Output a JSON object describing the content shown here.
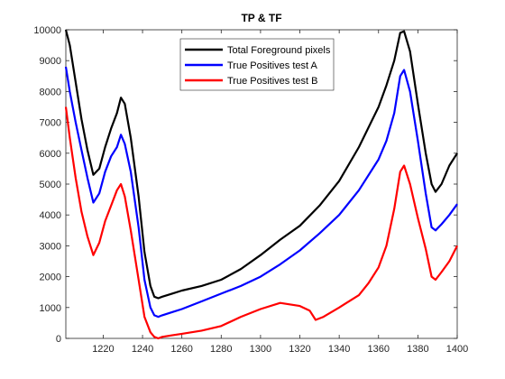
{
  "chart_data": {
    "type": "line",
    "title": "TP & TF",
    "xlabel": "",
    "ylabel": "",
    "xlim": [
      1201,
      1400
    ],
    "ylim": [
      0,
      10000
    ],
    "xticks": [
      1220,
      1240,
      1260,
      1280,
      1300,
      1320,
      1340,
      1360,
      1380,
      1400
    ],
    "yticks": [
      0,
      1000,
      2000,
      3000,
      4000,
      5000,
      6000,
      7000,
      8000,
      9000,
      10000
    ],
    "grid": false,
    "legend_position": "top-center",
    "series": [
      {
        "name": "Total Foreground pixels",
        "color": "#000000",
        "x": [
          1201,
          1203,
          1206,
          1209,
          1212,
          1215,
          1218,
          1221,
          1224,
          1227,
          1229,
          1231,
          1234,
          1238,
          1241,
          1244,
          1246,
          1248,
          1250,
          1255,
          1260,
          1270,
          1280,
          1290,
          1300,
          1310,
          1320,
          1330,
          1340,
          1350,
          1360,
          1364,
          1368,
          1371,
          1373,
          1376,
          1380,
          1384,
          1387,
          1389,
          1392,
          1396,
          1400
        ],
        "y": [
          10100,
          9500,
          8300,
          7100,
          6100,
          5300,
          5500,
          6200,
          6800,
          7300,
          7800,
          7600,
          6500,
          4600,
          2800,
          1700,
          1350,
          1300,
          1350,
          1450,
          1550,
          1700,
          1900,
          2250,
          2700,
          3200,
          3650,
          4300,
          5100,
          6200,
          7500,
          8200,
          9000,
          9900,
          9950,
          9300,
          7600,
          6000,
          5000,
          4750,
          5000,
          5600,
          6000
        ]
      },
      {
        "name": "True Positives test A",
        "color": "#0000ff",
        "x": [
          1201,
          1203,
          1206,
          1209,
          1212,
          1215,
          1218,
          1221,
          1224,
          1227,
          1229,
          1231,
          1234,
          1238,
          1241,
          1244,
          1246,
          1248,
          1250,
          1255,
          1260,
          1270,
          1280,
          1290,
          1300,
          1310,
          1320,
          1330,
          1340,
          1350,
          1360,
          1364,
          1368,
          1371,
          1373,
          1376,
          1380,
          1384,
          1387,
          1389,
          1392,
          1396,
          1400
        ],
        "y": [
          8800,
          8000,
          7000,
          6100,
          5200,
          4400,
          4700,
          5400,
          5900,
          6200,
          6600,
          6300,
          5400,
          3600,
          1900,
          1000,
          750,
          700,
          750,
          850,
          950,
          1200,
          1450,
          1700,
          2000,
          2400,
          2850,
          3400,
          4000,
          4800,
          5800,
          6400,
          7300,
          8500,
          8700,
          8000,
          6400,
          4700,
          3600,
          3500,
          3700,
          4000,
          4350
        ]
      },
      {
        "name": "True Positives test B",
        "color": "#ff0000",
        "x": [
          1201,
          1203,
          1206,
          1209,
          1212,
          1215,
          1218,
          1221,
          1224,
          1227,
          1229,
          1231,
          1234,
          1238,
          1241,
          1244,
          1246,
          1248,
          1250,
          1255,
          1260,
          1270,
          1280,
          1290,
          1300,
          1310,
          1320,
          1325,
          1328,
          1332,
          1340,
          1350,
          1355,
          1360,
          1364,
          1368,
          1371,
          1373,
          1376,
          1380,
          1384,
          1387,
          1389,
          1392,
          1396,
          1400
        ],
        "y": [
          7500,
          6500,
          5200,
          4100,
          3300,
          2700,
          3100,
          3800,
          4300,
          4800,
          5000,
          4600,
          3500,
          1900,
          700,
          200,
          50,
          0,
          50,
          100,
          150,
          250,
          400,
          700,
          950,
          1150,
          1050,
          900,
          600,
          700,
          1000,
          1400,
          1800,
          2300,
          3000,
          4200,
          5400,
          5600,
          5000,
          3900,
          2900,
          2000,
          1900,
          2150,
          2500,
          3000
        ]
      }
    ]
  }
}
